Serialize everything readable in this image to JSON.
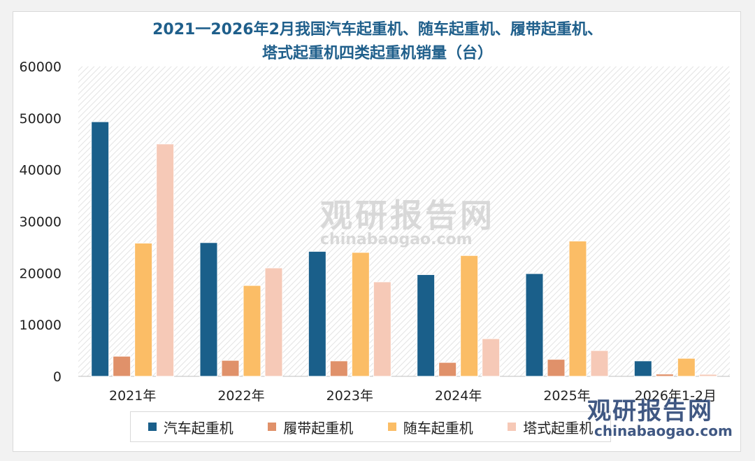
{
  "chart_data": {
    "type": "bar",
    "title_line1": "2021一2026年2月我国汽车起重机、随车起重机、履带起重机、",
    "title_line2": "塔式起重机四类起重机销量（台）",
    "categories": [
      "2021年",
      "2022年",
      "2023年",
      "2024年",
      "2025年",
      "2026年1-2月"
    ],
    "series": [
      {
        "name": "汽车起重机",
        "color": "#1a5f8a",
        "values": [
          49300,
          25900,
          24200,
          19700,
          19900,
          3000
        ]
      },
      {
        "name": "履带起重机",
        "color": "#e0916a",
        "values": [
          3900,
          3100,
          3000,
          2700,
          3300,
          450
        ]
      },
      {
        "name": "随车起重机",
        "color": "#fbbd66",
        "values": [
          25800,
          17600,
          24000,
          23400,
          26200,
          3500
        ]
      },
      {
        "name": "塔式起重机",
        "color": "#f6c9b7",
        "values": [
          45000,
          21000,
          18300,
          7300,
          5000,
          400
        ]
      }
    ],
    "ylim": [
      0,
      60000
    ],
    "yticks": [
      0,
      10000,
      20000,
      30000,
      40000,
      50000,
      60000
    ],
    "xlabel": "",
    "ylabel": ""
  },
  "watermark": {
    "center_text": "观研报告网",
    "center_url": "chinabaogao.com",
    "corner_text": "观研报告网",
    "corner_url": "chinabaogao.com"
  }
}
